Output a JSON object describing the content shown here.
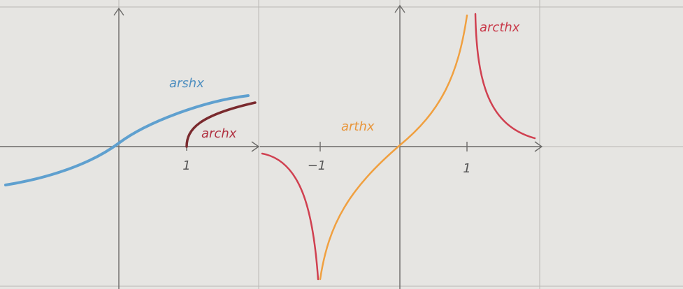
{
  "left_plot": {
    "curves": [
      {
        "label": "arshx"
      },
      {
        "label": "archx"
      }
    ],
    "ticks": [
      "1"
    ]
  },
  "right_plot": {
    "curves": [
      {
        "label": "arthx"
      },
      {
        "label": "arcthx"
      }
    ],
    "ticks": [
      "−1",
      "1"
    ]
  }
}
